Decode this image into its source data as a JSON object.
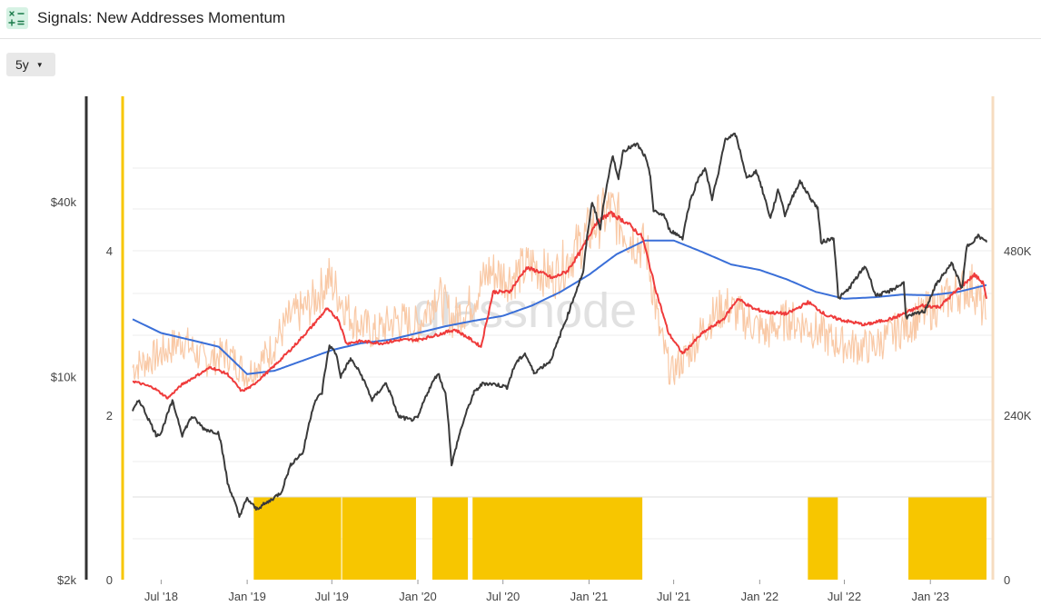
{
  "header": {
    "title": "Signals: New Addresses Momentum",
    "logo_icon": "formula-icon"
  },
  "controls": {
    "range_label": "5y"
  },
  "watermark": "glassnode",
  "colors": {
    "price": "#3a3a3a",
    "raw": "#f9c9a6",
    "short_ma": "#ef3b3b",
    "long_ma": "#3a6fd8",
    "signal": "#f7c600",
    "left_axis": "#333333",
    "mid_axis": "#f7c600",
    "right_axis": "#f6dcc0"
  },
  "chart_data": {
    "type": "line",
    "x_ticks": [
      "Jul '18",
      "Jan '19",
      "Jul '19",
      "Jan '20",
      "Jul '20",
      "Jan '21",
      "Jul '21",
      "Jan '22",
      "Jul '22",
      "Jan '23"
    ],
    "x_range": [
      "2018-05-01",
      "2023-05-01"
    ],
    "price_axis": {
      "ticks": [
        "$40k",
        "$10k",
        "$2k"
      ],
      "values": [
        40000,
        10000,
        2000
      ],
      "scale": "log"
    },
    "signal_axis": {
      "ticks": [
        "4",
        "2",
        "0"
      ],
      "values": [
        4,
        2,
        0
      ]
    },
    "addresses_axis": {
      "ticks": [
        "480K",
        "240K",
        "0"
      ],
      "values": [
        480000,
        240000,
        0
      ]
    },
    "series": [
      {
        "key": "price",
        "axis": "price",
        "points": [
          [
            "2018-05-01",
            7600
          ],
          [
            "2018-05-15",
            8300
          ],
          [
            "2018-06-01",
            7300
          ],
          [
            "2018-06-20",
            6300
          ],
          [
            "2018-07-01",
            6400
          ],
          [
            "2018-07-25",
            8200
          ],
          [
            "2018-08-15",
            6300
          ],
          [
            "2018-09-05",
            7300
          ],
          [
            "2018-10-01",
            6600
          ],
          [
            "2018-11-01",
            6400
          ],
          [
            "2018-11-20",
            4300
          ],
          [
            "2018-12-15",
            3300
          ],
          [
            "2019-01-01",
            3800
          ],
          [
            "2019-01-20",
            3500
          ],
          [
            "2019-02-15",
            3700
          ],
          [
            "2019-03-15",
            4000
          ],
          [
            "2019-04-05",
            5000
          ],
          [
            "2019-05-01",
            5500
          ],
          [
            "2019-05-25",
            8200
          ],
          [
            "2019-06-10",
            8800
          ],
          [
            "2019-06-26",
            12800
          ],
          [
            "2019-07-10",
            12000
          ],
          [
            "2019-07-20",
            10000
          ],
          [
            "2019-08-10",
            11500
          ],
          [
            "2019-09-01",
            10200
          ],
          [
            "2019-09-25",
            8300
          ],
          [
            "2019-10-25",
            9500
          ],
          [
            "2019-11-20",
            7300
          ],
          [
            "2019-12-15",
            7100
          ],
          [
            "2020-01-01",
            7200
          ],
          [
            "2020-01-20",
            8700
          ],
          [
            "2020-02-13",
            10300
          ],
          [
            "2020-03-01",
            8600
          ],
          [
            "2020-03-13",
            4900
          ],
          [
            "2020-04-01",
            6500
          ],
          [
            "2020-04-30",
            8800
          ],
          [
            "2020-05-20",
            9500
          ],
          [
            "2020-06-15",
            9400
          ],
          [
            "2020-07-10",
            9200
          ],
          [
            "2020-07-28",
            11100
          ],
          [
            "2020-08-17",
            12000
          ],
          [
            "2020-09-05",
            10300
          ],
          [
            "2020-10-10",
            11300
          ],
          [
            "2020-10-25",
            13000
          ],
          [
            "2020-11-15",
            16000
          ],
          [
            "2020-12-01",
            19000
          ],
          [
            "2020-12-20",
            23000
          ],
          [
            "2021-01-08",
            40000
          ],
          [
            "2021-01-25",
            32000
          ],
          [
            "2021-02-08",
            46000
          ],
          [
            "2021-02-21",
            57000
          ],
          [
            "2021-03-05",
            48000
          ],
          [
            "2021-03-15",
            60000
          ],
          [
            "2021-04-14",
            63000
          ],
          [
            "2021-05-01",
            57000
          ],
          [
            "2021-05-12",
            49000
          ],
          [
            "2021-05-19",
            37000
          ],
          [
            "2021-06-10",
            36000
          ],
          [
            "2021-06-22",
            32000
          ],
          [
            "2021-07-20",
            30000
          ],
          [
            "2021-08-05",
            40000
          ],
          [
            "2021-08-25",
            49000
          ],
          [
            "2021-09-06",
            52000
          ],
          [
            "2021-09-21",
            41000
          ],
          [
            "2021-10-05",
            50000
          ],
          [
            "2021-10-20",
            66000
          ],
          [
            "2021-11-10",
            68000
          ],
          [
            "2021-12-04",
            48000
          ],
          [
            "2021-12-25",
            51000
          ],
          [
            "2022-01-10",
            42000
          ],
          [
            "2022-01-24",
            35000
          ],
          [
            "2022-02-10",
            44000
          ],
          [
            "2022-02-24",
            36000
          ],
          [
            "2022-03-28",
            47000
          ],
          [
            "2022-04-20",
            41000
          ],
          [
            "2022-05-05",
            38000
          ],
          [
            "2022-05-12",
            29000
          ],
          [
            "2022-06-08",
            30000
          ],
          [
            "2022-06-18",
            18500
          ],
          [
            "2022-07-10",
            20000
          ],
          [
            "2022-08-15",
            24000
          ],
          [
            "2022-09-06",
            19000
          ],
          [
            "2022-10-01",
            19500
          ],
          [
            "2022-11-05",
            21000
          ],
          [
            "2022-11-10",
            16000
          ],
          [
            "2022-12-20",
            16800
          ],
          [
            "2023-01-14",
            20800
          ],
          [
            "2023-02-16",
            24500
          ],
          [
            "2023-03-10",
            20000
          ],
          [
            "2023-03-20",
            28000
          ],
          [
            "2023-04-14",
            30500
          ],
          [
            "2023-05-01",
            29000
          ]
        ]
      },
      {
        "key": "raw",
        "axis": "addresses",
        "points": [
          [
            "2018-05-01",
            310000
          ],
          [
            "2018-07-01",
            330000
          ],
          [
            "2018-08-15",
            350000
          ],
          [
            "2018-10-01",
            320000
          ],
          [
            "2018-11-20",
            330000
          ],
          [
            "2019-01-01",
            300000
          ],
          [
            "2019-02-15",
            330000
          ],
          [
            "2019-04-01",
            380000
          ],
          [
            "2019-05-15",
            400000
          ],
          [
            "2019-06-25",
            440000
          ],
          [
            "2019-08-15",
            380000
          ],
          [
            "2019-10-01",
            360000
          ],
          [
            "2019-11-15",
            380000
          ],
          [
            "2020-01-01",
            370000
          ],
          [
            "2020-02-10",
            420000
          ],
          [
            "2020-03-15",
            380000
          ],
          [
            "2020-04-20",
            400000
          ],
          [
            "2020-06-01",
            450000
          ],
          [
            "2020-07-15",
            440000
          ],
          [
            "2020-09-01",
            460000
          ],
          [
            "2020-10-15",
            440000
          ],
          [
            "2020-12-01",
            480000
          ],
          [
            "2021-01-15",
            520000
          ],
          [
            "2021-02-15",
            540000
          ],
          [
            "2021-04-01",
            500000
          ],
          [
            "2021-05-05",
            480000
          ],
          [
            "2021-06-01",
            360000
          ],
          [
            "2021-06-25",
            300000
          ],
          [
            "2021-08-01",
            330000
          ],
          [
            "2021-09-15",
            380000
          ],
          [
            "2021-10-20",
            400000
          ],
          [
            "2021-12-01",
            380000
          ],
          [
            "2022-01-15",
            360000
          ],
          [
            "2022-03-01",
            380000
          ],
          [
            "2022-04-15",
            370000
          ],
          [
            "2022-06-01",
            350000
          ],
          [
            "2022-07-15",
            340000
          ],
          [
            "2022-09-01",
            340000
          ],
          [
            "2022-10-15",
            360000
          ],
          [
            "2022-12-01",
            380000
          ],
          [
            "2023-01-15",
            400000
          ],
          [
            "2023-03-01",
            420000
          ],
          [
            "2023-04-01",
            430000
          ],
          [
            "2023-05-01",
            380000
          ]
        ]
      },
      {
        "key": "short_ma",
        "axis": "addresses",
        "points": [
          [
            "2018-05-01",
            290000
          ],
          [
            "2018-06-15",
            280000
          ],
          [
            "2018-07-15",
            265000
          ],
          [
            "2018-08-15",
            285000
          ],
          [
            "2018-10-15",
            310000
          ],
          [
            "2018-11-20",
            300000
          ],
          [
            "2018-12-20",
            275000
          ],
          [
            "2019-01-10",
            282000
          ],
          [
            "2019-02-25",
            310000
          ],
          [
            "2019-04-10",
            340000
          ],
          [
            "2019-05-20",
            370000
          ],
          [
            "2019-06-20",
            395000
          ],
          [
            "2019-07-15",
            380000
          ],
          [
            "2019-08-01",
            345000
          ],
          [
            "2019-09-01",
            348000
          ],
          [
            "2019-10-15",
            345000
          ],
          [
            "2019-11-25",
            350000
          ],
          [
            "2020-01-01",
            350000
          ],
          [
            "2020-02-15",
            358000
          ],
          [
            "2020-03-20",
            365000
          ],
          [
            "2020-04-20",
            352000
          ],
          [
            "2020-05-15",
            340000
          ],
          [
            "2020-06-10",
            420000
          ],
          [
            "2020-07-15",
            420000
          ],
          [
            "2020-08-20",
            455000
          ],
          [
            "2020-09-15",
            450000
          ],
          [
            "2020-10-15",
            440000
          ],
          [
            "2020-11-15",
            450000
          ],
          [
            "2020-12-15",
            480000
          ],
          [
            "2021-01-15",
            520000
          ],
          [
            "2021-02-15",
            535000
          ],
          [
            "2021-03-25",
            520000
          ],
          [
            "2021-04-25",
            500000
          ],
          [
            "2021-05-25",
            420000
          ],
          [
            "2021-06-20",
            360000
          ],
          [
            "2021-07-20",
            330000
          ],
          [
            "2021-09-01",
            360000
          ],
          [
            "2021-10-15",
            380000
          ],
          [
            "2021-11-15",
            410000
          ],
          [
            "2021-12-20",
            395000
          ],
          [
            "2022-01-20",
            390000
          ],
          [
            "2022-03-01",
            388000
          ],
          [
            "2022-04-15",
            405000
          ],
          [
            "2022-05-25",
            385000
          ],
          [
            "2022-07-01",
            378000
          ],
          [
            "2022-08-15",
            372000
          ],
          [
            "2022-10-15",
            382000
          ],
          [
            "2022-12-15",
            400000
          ],
          [
            "2023-01-20",
            398000
          ],
          [
            "2023-02-20",
            418000
          ],
          [
            "2023-04-05",
            445000
          ],
          [
            "2023-04-25",
            432000
          ],
          [
            "2023-05-01",
            410000
          ]
        ]
      },
      {
        "key": "long_ma",
        "axis": "addresses",
        "points": [
          [
            "2018-05-01",
            380000
          ],
          [
            "2018-07-01",
            360000
          ],
          [
            "2018-09-01",
            350000
          ],
          [
            "2018-11-01",
            340000
          ],
          [
            "2019-01-01",
            300000
          ],
          [
            "2019-03-01",
            305000
          ],
          [
            "2019-05-01",
            320000
          ],
          [
            "2019-07-01",
            335000
          ],
          [
            "2019-09-01",
            345000
          ],
          [
            "2019-11-01",
            350000
          ],
          [
            "2020-01-01",
            360000
          ],
          [
            "2020-03-01",
            370000
          ],
          [
            "2020-05-01",
            378000
          ],
          [
            "2020-07-01",
            385000
          ],
          [
            "2020-09-01",
            400000
          ],
          [
            "2020-11-01",
            420000
          ],
          [
            "2021-01-01",
            445000
          ],
          [
            "2021-03-01",
            475000
          ],
          [
            "2021-05-01",
            495000
          ],
          [
            "2021-07-01",
            495000
          ],
          [
            "2021-09-01",
            478000
          ],
          [
            "2021-11-01",
            460000
          ],
          [
            "2022-01-01",
            452000
          ],
          [
            "2022-03-01",
            438000
          ],
          [
            "2022-05-01",
            420000
          ],
          [
            "2022-07-01",
            410000
          ],
          [
            "2022-09-01",
            412000
          ],
          [
            "2022-11-01",
            416000
          ],
          [
            "2023-01-01",
            415000
          ],
          [
            "2023-03-01",
            420000
          ],
          [
            "2023-05-01",
            430000
          ]
        ]
      }
    ],
    "signal": {
      "value": 1,
      "ranges": [
        [
          "2019-01-15",
          "2019-07-21"
        ],
        [
          "2019-07-23",
          "2019-12-28"
        ],
        [
          "2020-02-01",
          "2020-04-17"
        ],
        [
          "2020-04-27",
          "2021-04-25"
        ],
        [
          "2022-04-14",
          "2022-06-17"
        ],
        [
          "2022-11-15",
          "2023-05-01"
        ]
      ]
    }
  }
}
